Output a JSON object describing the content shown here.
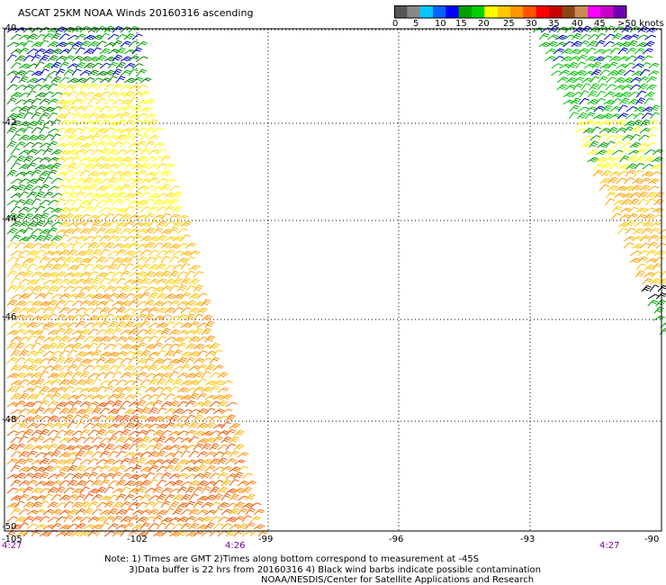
{
  "title": "ASCAT 25KM NOAA Winds 20160316 ascending",
  "legend": {
    "colors": [
      "#555555",
      "#888888",
      "#00c8ff",
      "#0064ff",
      "#0000ff",
      "#00a000",
      "#00d000",
      "#ffff00",
      "#ffc800",
      "#ff9600",
      "#ff5000",
      "#ff0000",
      "#c80000",
      "#8c4614",
      "#c88c50",
      "#ff00ff",
      "#c800c8",
      "#6e00b4"
    ],
    "tick_labels": [
      "0",
      "5",
      "10",
      "15",
      "20",
      "25",
      "30",
      "35",
      "40",
      "45",
      ">50 knots"
    ]
  },
  "axes": {
    "lat_labels": [
      "-40",
      "-42",
      "-44",
      "-46",
      "-48",
      "-50"
    ],
    "lon_labels": [
      "-105",
      "-102",
      "-99",
      "-96",
      "-93",
      "-90"
    ]
  },
  "times": [
    "4:27",
    "4:26",
    "4:27"
  ],
  "notes": {
    "line1": "Note: 1) Times are GMT 2)Times along bottom correspond to measurement at -45S",
    "line2": "3)Data buffer is 22 hrs from 20160316 4) Black wind barbs indicate possible contamination",
    "line3": "NOAA/NESDIS/Center for Satellite Applications and Research"
  }
}
